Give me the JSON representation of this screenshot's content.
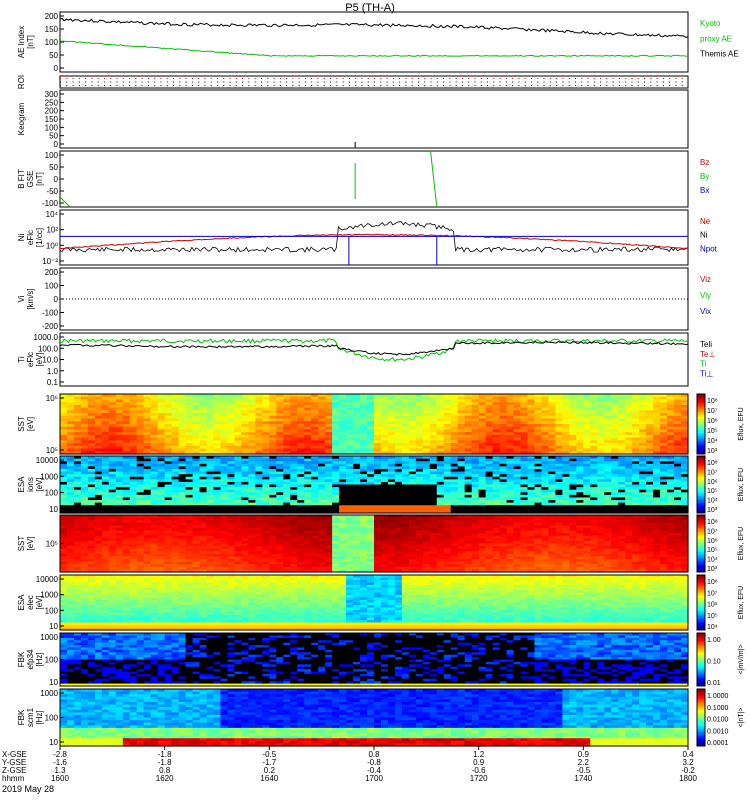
{
  "title": "P5 (TH-A)",
  "date": "2019 May 28",
  "colors": {
    "kyoto": "#00c000",
    "themis": "#000000",
    "bz": "#c00000",
    "by": "#00c000",
    "bx": "#0000c0",
    "red": "#d00000",
    "green": "#00c000",
    "blue": "#0000d0"
  },
  "panels": [
    {
      "key": "ae",
      "ylabel": [
        "AE Index",
        "[nT]"
      ],
      "ticks": [
        "200",
        "150",
        "100",
        "50",
        "0"
      ],
      "legend": [
        {
          "text": "Kyoto",
          "color": "#00c000"
        },
        {
          "text": "proxy AE",
          "color": "#00c000"
        },
        {
          "text": "Themis AE",
          "color": "#000000"
        }
      ]
    },
    {
      "key": "roi",
      "ylabel": [
        "ROI"
      ],
      "ticks": [],
      "legend": []
    },
    {
      "key": "keogram",
      "ylabel": [
        "Keogram"
      ],
      "ticks": [
        "300",
        "250",
        "200",
        "150",
        "100",
        "50",
        "0"
      ],
      "legend": []
    },
    {
      "key": "bfit",
      "ylabel": [
        "B FIT",
        "GSE",
        "[nT]"
      ],
      "ticks": [
        "100",
        "50",
        "0",
        "-50",
        "-100"
      ],
      "legend": [
        {
          "text": "Bz",
          "color": "#c00000"
        },
        {
          "text": "By",
          "color": "#00c000"
        },
        {
          "text": "Bx",
          "color": "#0000c0"
        }
      ]
    },
    {
      "key": "ni",
      "ylabel": [
        "Ni",
        "eFlc",
        "[1/cc]"
      ],
      "ticks": [
        "10⁴",
        "10²",
        "10⁰",
        "10⁻²"
      ],
      "legend": [
        {
          "text": "Ne",
          "color": "#c00000"
        },
        {
          "text": "Ni",
          "color": "#000000"
        },
        {
          "text": "Npot",
          "color": "#0000c0"
        }
      ]
    },
    {
      "key": "vi",
      "ylabel": [
        "Vi",
        "[km/s]"
      ],
      "ticks": [
        "200",
        "100",
        "0",
        "-100",
        "-200"
      ],
      "legend": [
        {
          "text": "Viz",
          "color": "#c00000"
        },
        {
          "text": "Viy",
          "color": "#00c000"
        },
        {
          "text": "Vix",
          "color": "#0000c0"
        }
      ]
    },
    {
      "key": "ti",
      "ylabel": [
        "Ti",
        "eFlc",
        "[eV]"
      ],
      "ticks": [
        "1000.0",
        "100.0",
        "10.0",
        "1.0",
        "0.1"
      ],
      "legend": [
        {
          "text": "Teli",
          "color": "#000000"
        },
        {
          "text": "Te⊥",
          "color": "#c00000"
        },
        {
          "text": "Ti",
          "color": "#00c000"
        },
        {
          "text": "Ti⊥",
          "color": "#0000c0"
        }
      ]
    },
    {
      "key": "sst_i",
      "ylabel": [
        "SST",
        "[eV]"
      ],
      "ticks": [
        "10⁶",
        "10⁵"
      ],
      "legend": []
    },
    {
      "key": "esa_i",
      "ylabel": [
        "ESA",
        "ions",
        "[eV]"
      ],
      "ticks": [
        "10000",
        "1000",
        "100",
        "10"
      ],
      "legend": []
    },
    {
      "key": "sst_e",
      "ylabel": [
        "SST",
        "[eV]"
      ],
      "ticks": [
        "10⁵"
      ],
      "legend": []
    },
    {
      "key": "esa_e",
      "ylabel": [
        "ESA",
        "elec",
        "[eV]"
      ],
      "ticks": [
        "10000",
        "1000",
        "100",
        "10"
      ],
      "legend": []
    },
    {
      "key": "fbk1",
      "ylabel": [
        "FBK",
        "efp34",
        "[Hz]"
      ],
      "ticks": [
        "1000",
        "100",
        "10"
      ],
      "legend": []
    },
    {
      "key": "fbk2",
      "ylabel": [
        "FBK",
        "scm1",
        "[Hz]"
      ],
      "ticks": [
        "1000",
        "100",
        "10"
      ],
      "legend": []
    }
  ],
  "colorbars": [
    {
      "ticks": [
        "10⁸",
        "10⁷",
        "10⁶",
        "10⁵",
        "10⁴",
        "10³"
      ],
      "label": "Eflux, EFU"
    },
    {
      "ticks": [
        "10⁸",
        "10⁷",
        "10⁶",
        "10⁵",
        "10⁴",
        "10³"
      ],
      "label": "Eflux, EFU"
    },
    {
      "ticks": [
        "10⁸",
        "10⁷",
        "10⁶",
        "10⁵",
        "10⁴",
        "10³"
      ],
      "label": "Eflux, EFU"
    },
    {
      "ticks": [
        "10⁸",
        "10⁷",
        "10⁶",
        "10⁵",
        "10⁴"
      ],
      "label": "Eflux, EFU"
    },
    {
      "ticks": [
        "1.00",
        "0.10",
        "0.01"
      ],
      "label": "<|mV/m|>"
    },
    {
      "ticks": [
        "1.0000",
        "0.1000",
        "0.0100",
        "0.0010",
        "0.0001"
      ],
      "label": "<|nT|>"
    }
  ],
  "xaxis": {
    "labels": [
      "X-GSE",
      "Y-GSE",
      "Z-GSE",
      "hhmm"
    ],
    "cols": [
      [
        "-2.8",
        "-1.6",
        "1.3",
        "1600"
      ],
      [
        "-1.8",
        "-1.8",
        "0.8",
        "1620"
      ],
      [
        "-0.5",
        "-1.7",
        "0.2",
        "1640"
      ],
      [
        "0.8",
        "-0.8",
        "-0.4",
        "1700"
      ],
      [
        "1.2",
        "0.9",
        "-0.6",
        "1720"
      ],
      [
        "0.9",
        "2.2",
        "-0.5",
        "1740"
      ],
      [
        "0.4",
        "3.2",
        "-0.2",
        "1800"
      ]
    ]
  },
  "chart_data": {
    "type": "line",
    "title": "P5 (TH-A)",
    "x_unit": "UT hhmm, 2019 May 28",
    "x": [
      "1600",
      "1620",
      "1640",
      "1700",
      "1720",
      "1740",
      "1800"
    ],
    "series": [
      {
        "name": "Themis AE",
        "panel": "AE Index [nT]",
        "values": [
          190,
          175,
          150,
          140,
          130,
          110,
          100
        ]
      },
      {
        "name": "Kyoto proxy AE",
        "panel": "AE Index [nT]",
        "values": [
          95,
          70,
          50,
          45,
          50,
          50,
          50
        ]
      },
      {
        "name": "Ni",
        "panel": "Ni [1/cc]",
        "values": [
          0.3,
          0.5,
          0.8,
          150,
          0.8,
          0.5,
          0.3
        ]
      },
      {
        "name": "Ne",
        "panel": "Ni [1/cc]",
        "values": [
          0.5,
          1,
          3,
          15,
          5,
          1,
          0.5
        ]
      },
      {
        "name": "Npot",
        "panel": "Ni [1/cc]",
        "values": [
          10,
          10,
          10,
          10,
          10,
          10,
          10
        ]
      },
      {
        "name": "Teli",
        "panel": "Ti [eV]",
        "values": [
          700,
          800,
          500,
          20,
          300,
          600,
          800
        ]
      },
      {
        "name": "Ti",
        "panel": "Ti [eV]",
        "values": [
          1000,
          1200,
          1300,
          3,
          1200,
          1100,
          1000
        ]
      }
    ]
  }
}
